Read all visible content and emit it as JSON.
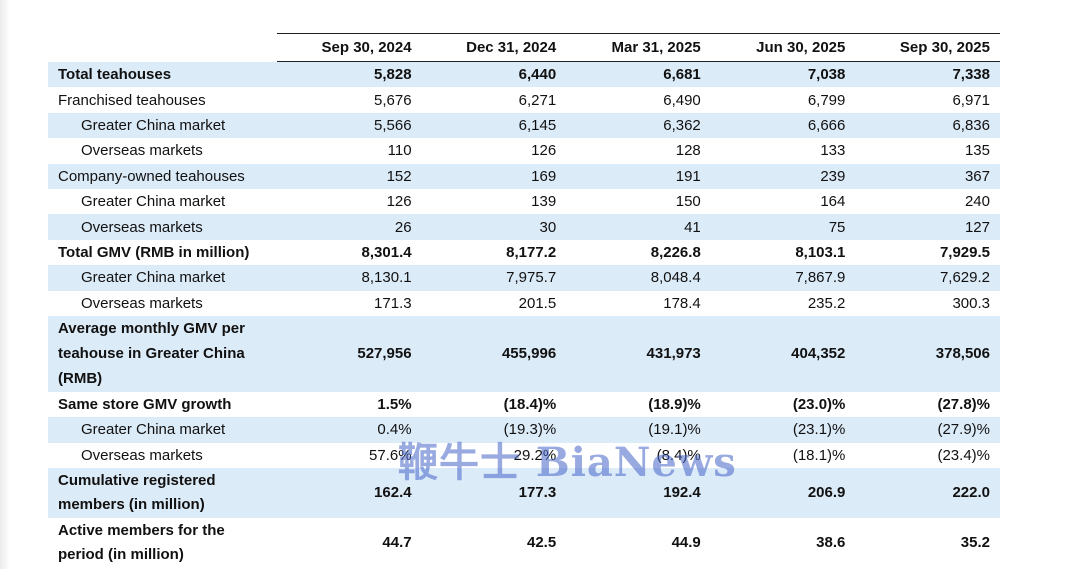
{
  "columns": [
    "Sep 30, 2024",
    "Dec 31, 2024",
    "Mar 31, 2025",
    "Jun 30, 2025",
    "Sep 30, 2025"
  ],
  "rows": [
    {
      "label": "Total teahouses",
      "values": [
        "5,828",
        "6,440",
        "6,681",
        "7,038",
        "7,338"
      ]
    },
    {
      "label": "Franchised teahouses",
      "values": [
        "5,676",
        "6,271",
        "6,490",
        "6,799",
        "6,971"
      ]
    },
    {
      "label": "Greater China market",
      "values": [
        "5,566",
        "6,145",
        "6,362",
        "6,666",
        "6,836"
      ]
    },
    {
      "label": "Overseas markets",
      "values": [
        "110",
        "126",
        "128",
        "133",
        "135"
      ]
    },
    {
      "label": "Company-owned teahouses",
      "values": [
        "152",
        "169",
        "191",
        "239",
        "367"
      ]
    },
    {
      "label": "Greater China market",
      "values": [
        "126",
        "139",
        "150",
        "164",
        "240"
      ]
    },
    {
      "label": "Overseas markets",
      "values": [
        "26",
        "30",
        "41",
        "75",
        "127"
      ]
    },
    {
      "label": "Total GMV (RMB in million)",
      "values": [
        "8,301.4",
        "8,177.2",
        "8,226.8",
        "8,103.1",
        "7,929.5"
      ]
    },
    {
      "label": "Greater China market",
      "values": [
        "8,130.1",
        "7,975.7",
        "8,048.4",
        "7,867.9",
        "7,629.2"
      ]
    },
    {
      "label": "Overseas markets",
      "values": [
        "171.3",
        "201.5",
        "178.4",
        "235.2",
        "300.3"
      ]
    },
    {
      "label": "Average monthly GMV per teahouse in Greater China (RMB)",
      "values": [
        "527,956",
        "455,996",
        "431,973",
        "404,352",
        "378,506"
      ]
    },
    {
      "label": "Same store GMV growth",
      "values": [
        "1.5%",
        "(18.4)%",
        "(18.9)%",
        "(23.0)%",
        "(27.8)%"
      ]
    },
    {
      "label": "Greater China market",
      "values": [
        "0.4%",
        "(19.3)%",
        "(19.1)%",
        "(23.1)%",
        "(27.9)%"
      ]
    },
    {
      "label": "Overseas markets",
      "values": [
        "57.6%",
        "29.2%",
        "(8.4)%",
        "(18.1)%",
        "(23.4)%"
      ]
    },
    {
      "label": "Cumulative registered members (in million)",
      "values": [
        "162.4",
        "177.3",
        "192.4",
        "206.9",
        "222.0"
      ]
    },
    {
      "label": "Active members for the period (in million)",
      "values": [
        "44.7",
        "42.5",
        "44.9",
        "38.6",
        "35.2"
      ]
    }
  ],
  "watermark": "鞭牛士 BiaNews"
}
